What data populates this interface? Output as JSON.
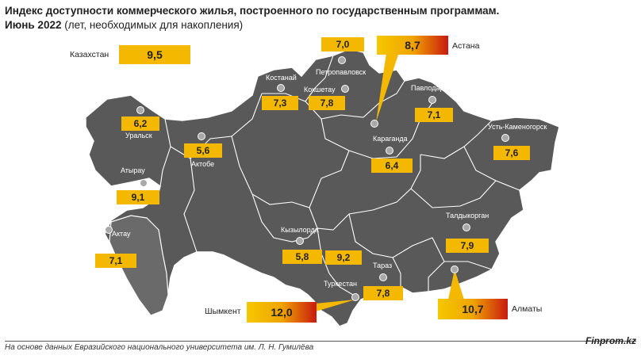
{
  "title": {
    "line1": "Индекс доступности коммерческого жилья, построенного по государственным программам.",
    "line2_bold": "Июнь 2022",
    "line2_rest": " (лет, необходимых для накопления)"
  },
  "country": {
    "name": "Казахстан",
    "value": "9,5"
  },
  "cities": {
    "petropavlovsk": {
      "name": "Петропавловск",
      "value": "7,0"
    },
    "astana": {
      "name": "Астана",
      "value": "8,7"
    },
    "kostanay": {
      "name": "Костанай",
      "value": "7,3"
    },
    "kokshetau": {
      "name": "Кокшетау",
      "value": "7,8"
    },
    "pavlodar": {
      "name": "Павлодар",
      "value": "7,1"
    },
    "uralsk": {
      "name": "Уральск",
      "value": "6,2"
    },
    "aktobe": {
      "name": "Актобе",
      "value": "5,6"
    },
    "karaganda": {
      "name": "Караганда",
      "value": "6,4"
    },
    "ust_kamenogorsk": {
      "name": "Усть-Каменогорск",
      "value": "7,6"
    },
    "atyrau": {
      "name": "Атырау",
      "value": "9,1"
    },
    "aktau": {
      "name": "Актау",
      "value": "7,1"
    },
    "kyzylorda": {
      "name": "Кызылорда",
      "value": "5,8"
    },
    "turkestan": {
      "name": "Туркестан",
      "value": "9,2"
    },
    "taraz": {
      "name": "Тараз",
      "value": "7,8"
    },
    "taldykorgan": {
      "name": "Талдыкорган",
      "value": "7,9"
    },
    "shymkent": {
      "name": "Шымкент",
      "value": "12,0"
    },
    "almaty": {
      "name": "Алматы",
      "value": "10,7"
    }
  },
  "colors": {
    "map": "#595959",
    "accent": "#f5b800",
    "highlight": "#c91a10"
  },
  "footer": {
    "source": "На основе данных Евразийского национального университета им. Л. Н. Гумилёва",
    "brand": "Finprom.kz"
  }
}
